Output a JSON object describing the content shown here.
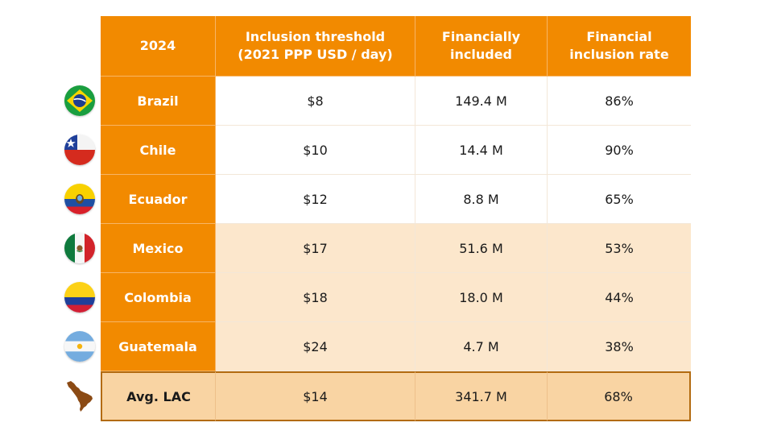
{
  "table": {
    "headers": [
      "2024",
      "Inclusion threshold\n(2021 PPP USD / day)",
      "Financially\nincluded",
      "Financial\ninclusion rate"
    ],
    "rows": [
      {
        "country": "Brazil",
        "threshold": "$8",
        "included": "149.4 M",
        "rate": "86%"
      },
      {
        "country": "Chile",
        "threshold": "$10",
        "included": "14.4 M",
        "rate": "90%"
      },
      {
        "country": "Ecuador",
        "threshold": "$12",
        "included": "8.8 M",
        "rate": "65%"
      },
      {
        "country": "Mexico",
        "threshold": "$17",
        "included": "51.6 M",
        "rate": "53%"
      },
      {
        "country": "Colombia",
        "threshold": "$18",
        "included": "18.0 M",
        "rate": "44%"
      },
      {
        "country": "Guatemala",
        "threshold": "$24",
        "included": "4.7 M",
        "rate": "38%"
      }
    ],
    "average": {
      "country": "Avg. LAC",
      "threshold": "$14",
      "included": "341.7 M",
      "rate": "68%"
    }
  },
  "icons": [
    "brazil-flag-icon",
    "chile-flag-icon",
    "ecuador-flag-icon",
    "mexico-flag-icon",
    "colombia-flag-icon",
    "argentina-flag-icon",
    "latin-america-map-icon"
  ],
  "colors": {
    "header": "#f28a00",
    "tint_row": "#fce7cc",
    "avg_row": "#f9d4a3",
    "avg_border": "#b36b10"
  }
}
